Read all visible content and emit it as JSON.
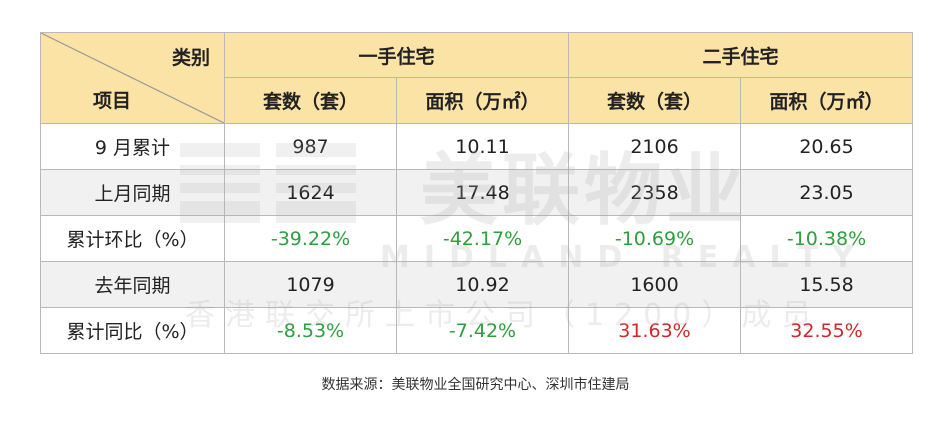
{
  "header": {
    "corner_top": "类别",
    "corner_bottom": "项目",
    "group_new": "一手住宅",
    "group_second": "二手住宅",
    "col_units": "套数（套）",
    "col_area": "面积（万㎡）"
  },
  "rows": [
    {
      "label": "9 月累计",
      "new_units": "987",
      "new_area": "10.11",
      "second_units": "2106",
      "second_area": "20.65"
    },
    {
      "label": "上月同期",
      "new_units": "1624",
      "new_area": "17.48",
      "second_units": "2358",
      "second_area": "23.05"
    },
    {
      "label": "累计环比（%）",
      "new_units": "-39.22%",
      "new_area": "-42.17%",
      "second_units": "-10.69%",
      "second_area": "-10.38%"
    },
    {
      "label": "去年同期",
      "new_units": "1079",
      "new_area": "10.92",
      "second_units": "1600",
      "second_area": "15.58"
    },
    {
      "label": "累计同比（%）",
      "new_units": "-8.53%",
      "new_area": "-7.42%",
      "second_units": "31.63%",
      "second_area": "32.55%"
    }
  ],
  "watermark": {
    "brand": "美联物业",
    "english": "MIDLAND REALTY",
    "subtitle": "香港联交所上市公司（1200）成员"
  },
  "source": "数据来源：美联物业全国研究中心、深圳市住建局",
  "colors": {
    "header_bg": "#fbe3a6",
    "positive": "#d2272a",
    "negative": "#2f9e3f",
    "shade_row": "#f1f1f1",
    "border": "#b8b8b8"
  }
}
